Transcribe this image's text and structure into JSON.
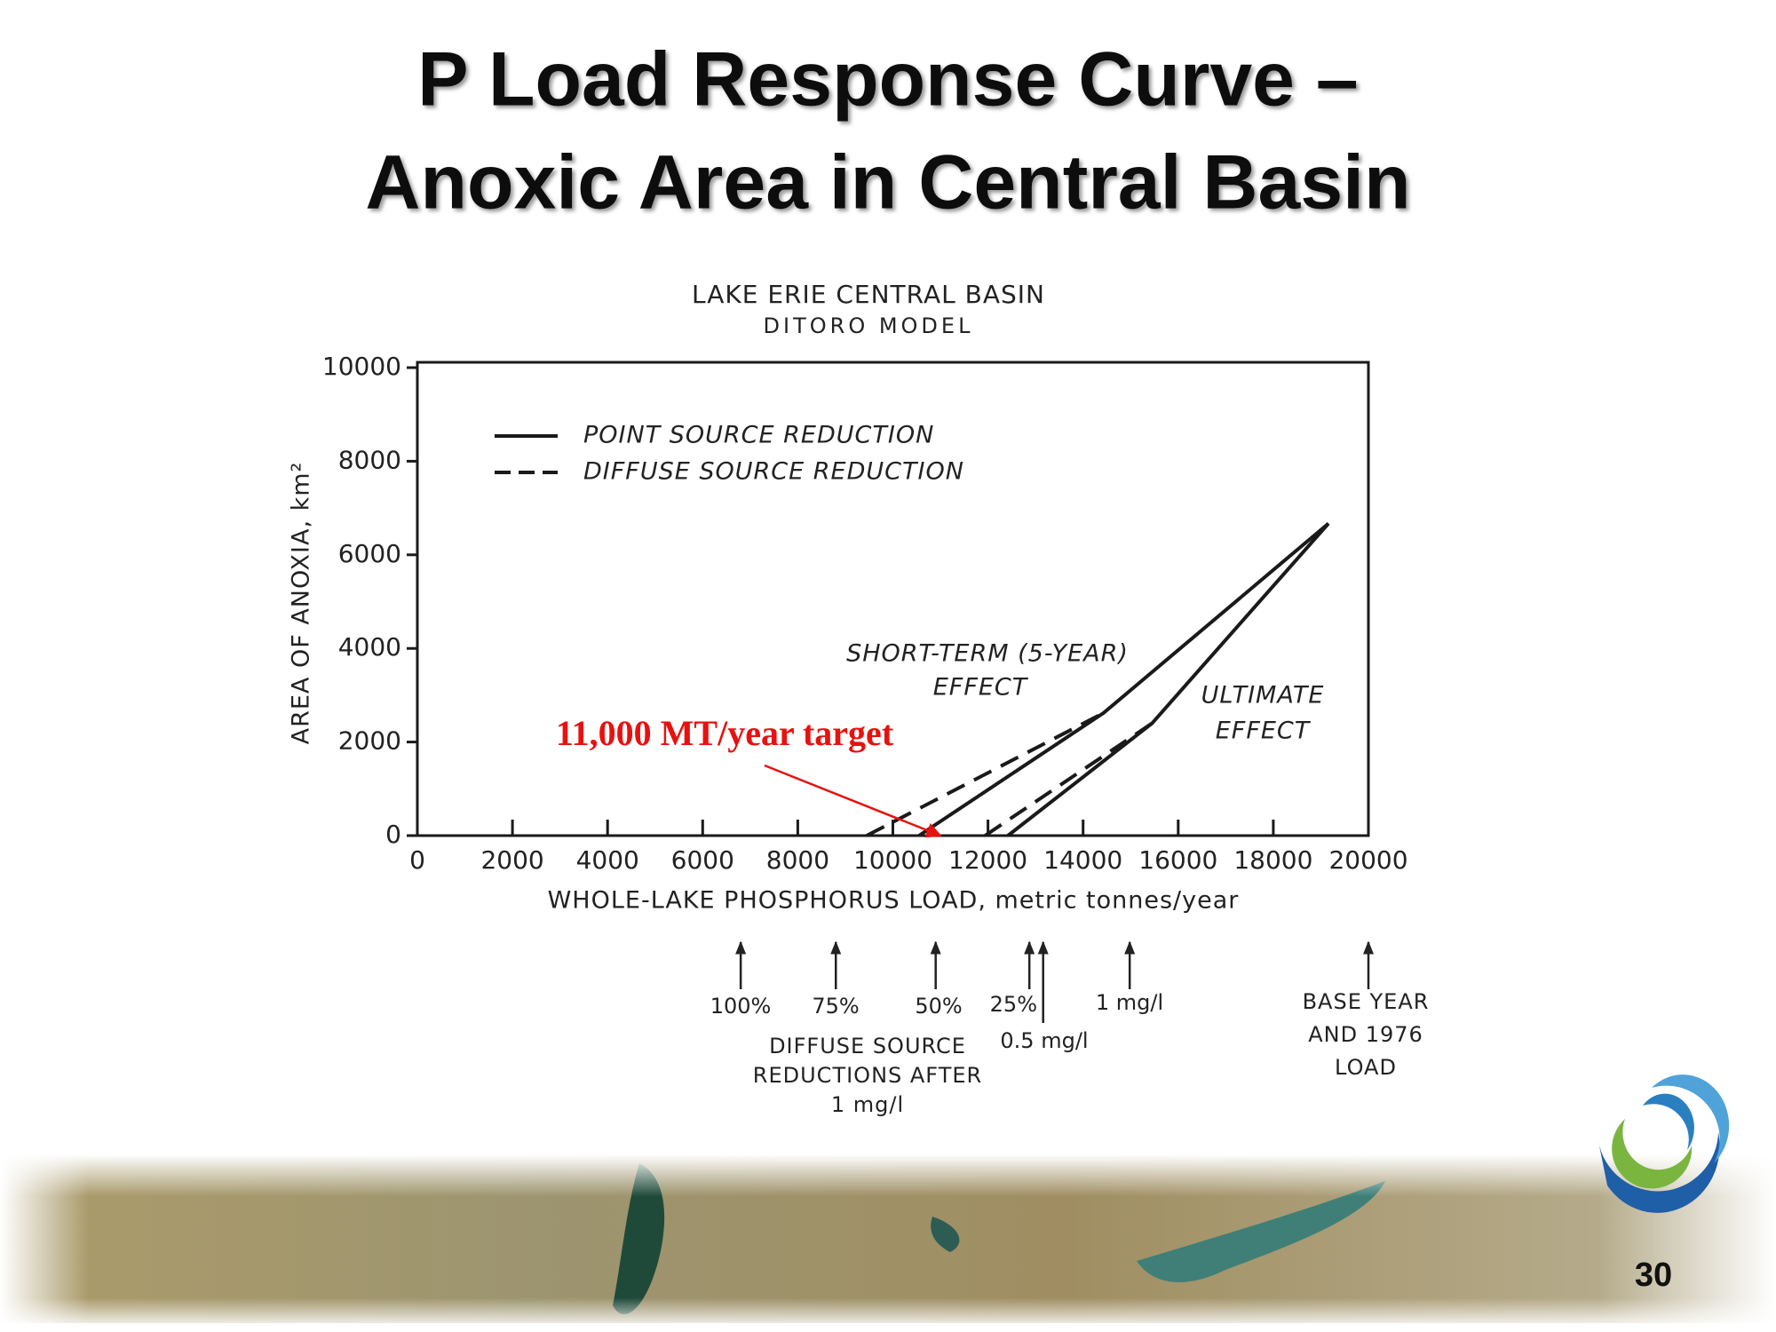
{
  "slide": {
    "title_lines": [
      "P Load Response Curve –",
      "Anoxic Area in Central Basin"
    ],
    "page_number": "30"
  },
  "chart_data": {
    "type": "line",
    "title": "LAKE ERIE CENTRAL BASIN",
    "subtitle": "DITORO MODEL",
    "x_label": "WHOLE-LAKE PHOSPHORUS LOAD, metric tonnes/year",
    "y_label": "AREA OF ANOXIA, km²",
    "xlim": [
      0,
      20000
    ],
    "ylim": [
      0,
      10000
    ],
    "xticks": [
      0,
      2000,
      4000,
      6000,
      8000,
      10000,
      12000,
      14000,
      16000,
      18000,
      20000
    ],
    "yticks": [
      0,
      2000,
      4000,
      6000,
      8000,
      10000
    ],
    "color": "#1a1a1a",
    "series": [
      {
        "name": "POINT SOURCE REDUCTION",
        "dashed": false,
        "lines": [
          {
            "x": [
              10550,
              14430,
              19160
            ],
            "values": [
              0,
              2620,
              6670
            ]
          },
          {
            "x": [
              12420,
              15450,
              19160
            ],
            "values": [
              0,
              2400,
              6670
            ]
          }
        ]
      },
      {
        "name": "DIFFUSE SOURCE REDUCTION",
        "dashed": true,
        "lines": [
          {
            "x": [
              9450,
              14430
            ],
            "values": [
              0,
              2620
            ]
          },
          {
            "x": [
              11940,
              15450
            ],
            "values": [
              0,
              2400
            ]
          }
        ]
      }
    ],
    "curve_labels": [
      [
        "SHORT-TERM (5-YEAR)",
        "EFFECT"
      ],
      [
        "ULTIMATE",
        "EFFECT"
      ]
    ],
    "annotation": {
      "text": "11,000 MT/year target",
      "x": 11000,
      "y": 0,
      "color": "#e8110f"
    },
    "markers": [
      {
        "x": 6800,
        "label": "100%"
      },
      {
        "x": 8800,
        "label": "75%"
      },
      {
        "x": 10900,
        "label": "50%"
      },
      {
        "x": 12870,
        "label": "25%"
      },
      {
        "x": 13160,
        "label": "0.5 mg/l"
      },
      {
        "x": 14980,
        "label": "1 mg/l"
      },
      {
        "x": 20000,
        "label": [
          "BASE YEAR",
          "AND 1976",
          "LOAD"
        ]
      }
    ],
    "marker_group_label": [
      "DIFFUSE SOURCE",
      "REDUCTIONS AFTER",
      "1 mg/l"
    ]
  }
}
